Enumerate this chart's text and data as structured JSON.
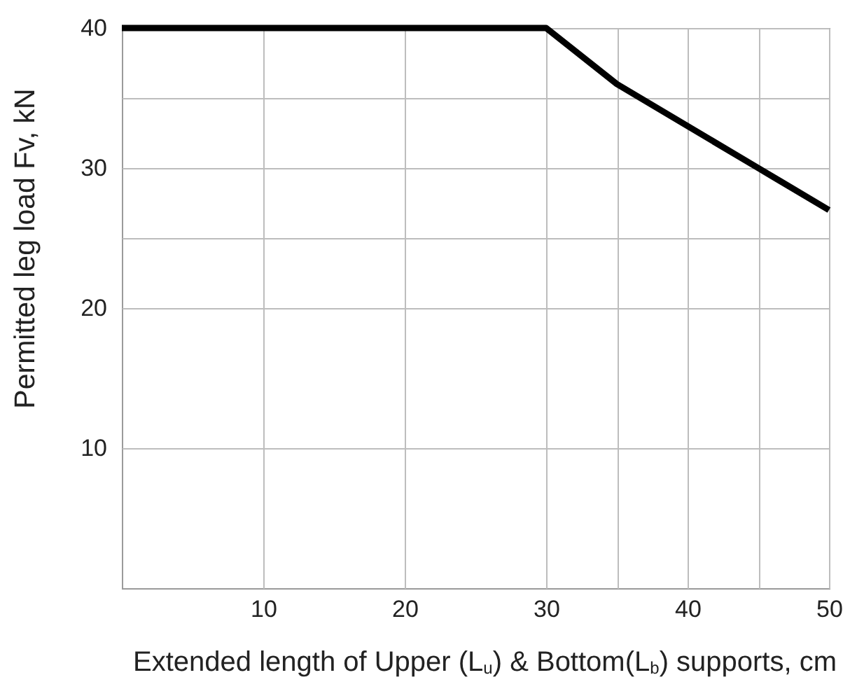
{
  "chart_data": {
    "type": "line",
    "xlabel": "Extended length of Upper (L$_{u}$) & Bottom(L$_{b}$) supports, cm",
    "ylabel": "Permitted leg load Fv, kN",
    "x": [
      0,
      30,
      35,
      40,
      45,
      50
    ],
    "series": [
      {
        "color": "#000000",
        "values": [
          40,
          40,
          36,
          33,
          30,
          27
        ]
      }
    ],
    "xlim": [
      0,
      50
    ],
    "ylim": [
      0,
      40
    ],
    "xticks": [
      10,
      20,
      30,
      {
        "value": 35,
        "label": null
      },
      40,
      {
        "value": 45,
        "label": null
      },
      50
    ],
    "yticks": [
      10,
      20,
      {
        "value": 25,
        "label": null
      },
      30,
      {
        "value": 35,
        "label": null
      },
      40
    ],
    "grid": true
  }
}
